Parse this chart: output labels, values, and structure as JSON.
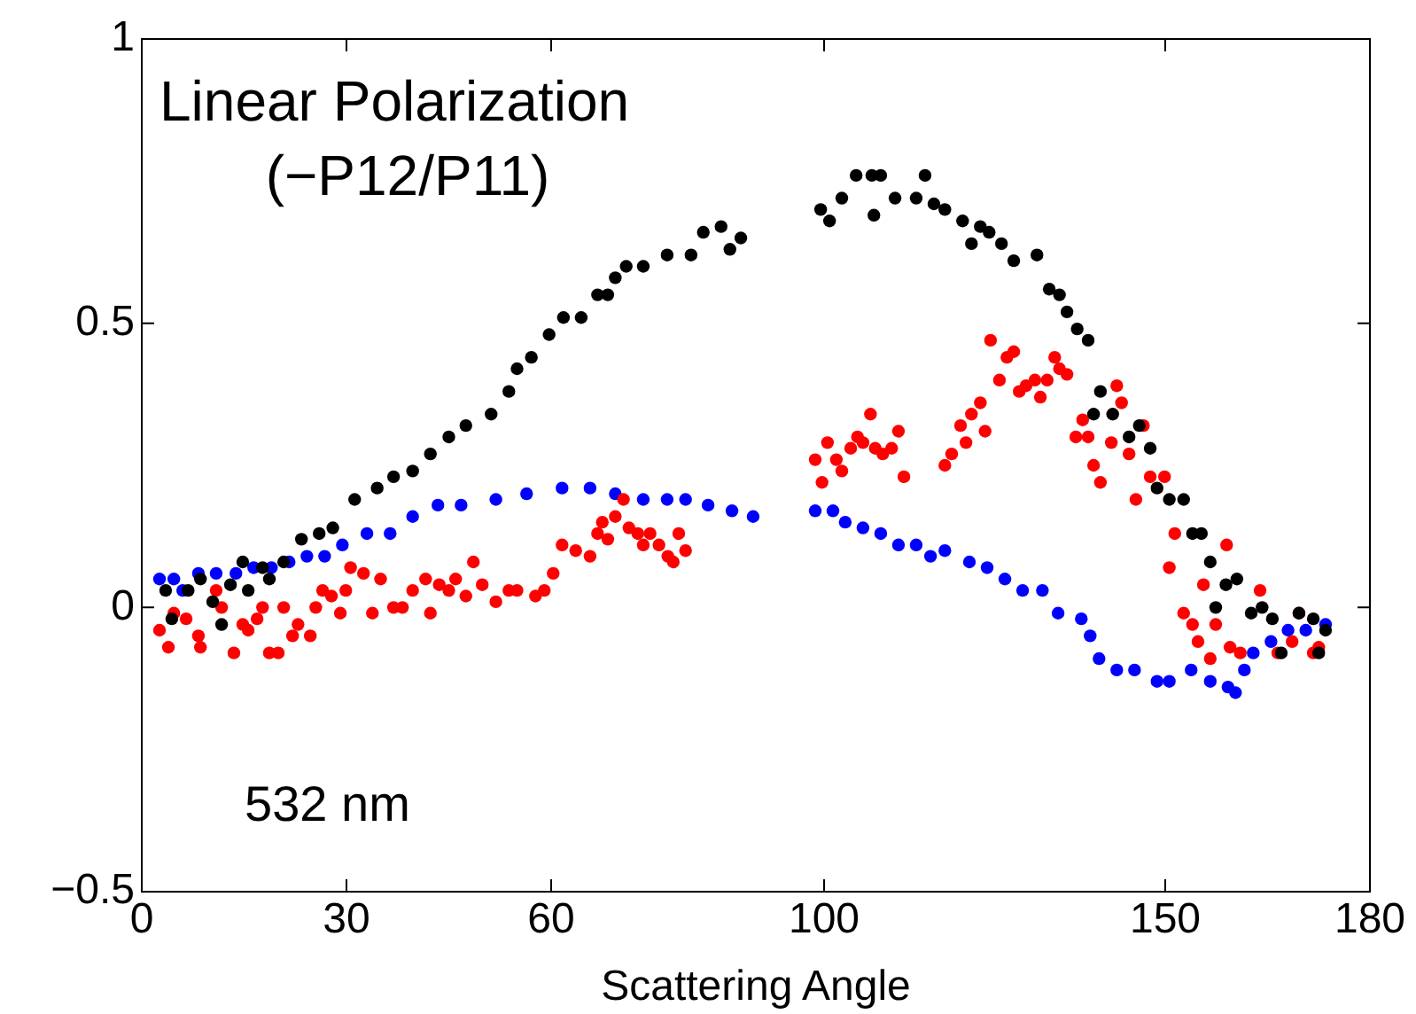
{
  "chart_data": {
    "type": "scatter",
    "title": "Linear Polarization",
    "subtitle": "(−P12/P11)",
    "xlabel": "Scattering Angle",
    "annotations": [
      "532 nm"
    ],
    "xlim": [
      0,
      180
    ],
    "xticks": [
      0,
      30,
      60,
      100,
      150,
      180
    ],
    "ylim": [
      -0.5,
      1
    ],
    "yticks": [
      {
        "value": -0.5,
        "label": "−0.5"
      },
      0,
      0.5,
      1
    ],
    "grid": false,
    "legend": false,
    "marker": "circle",
    "series": [
      {
        "color": "#000000",
        "x": [
          3.5,
          4.4,
          6.8,
          8.6,
          10.4,
          11.7,
          13,
          14.8,
          15.6,
          17.7,
          18.7,
          20.8,
          23.4,
          26,
          28,
          31.2,
          34.5,
          36.9,
          39.7,
          42.3,
          45,
          47.5,
          51.2,
          53.8,
          55,
          57.1,
          59.7,
          61.8,
          64.4,
          66.8,
          68.3,
          69.4,
          71,
          73.5,
          77,
          80.5,
          82.3,
          84.9,
          86.2,
          87.8,
          99.5,
          100.8,
          102.6,
          104.7,
          107,
          107.3,
          108.3,
          110.4,
          113.5,
          114.8,
          116.1,
          117.7,
          120.3,
          121.6,
          122.9,
          124.2,
          126,
          127.8,
          131.2,
          133,
          134.5,
          135.6,
          137.1,
          138.7,
          139.5,
          140.5,
          142.3,
          144.7,
          146.2,
          147.8,
          148.8,
          150.6,
          152.7,
          154,
          155.3,
          156.6,
          157.4,
          158.9,
          160.5,
          162.6,
          164.2,
          165.7,
          167,
          169.6,
          171.7,
          172.5,
          173.5
        ],
        "values": [
          0.03,
          -0.02,
          0.03,
          0.05,
          0.01,
          -0.03,
          0.04,
          0.08,
          0.03,
          0.07,
          0.05,
          0.08,
          0.12,
          0.13,
          0.14,
          0.19,
          0.21,
          0.23,
          0.24,
          0.27,
          0.3,
          0.32,
          0.34,
          0.38,
          0.42,
          0.44,
          0.48,
          0.51,
          0.51,
          0.55,
          0.55,
          0.58,
          0.6,
          0.6,
          0.62,
          0.62,
          0.66,
          0.67,
          0.63,
          0.65,
          0.7,
          0.68,
          0.72,
          0.76,
          0.76,
          0.69,
          0.76,
          0.72,
          0.72,
          0.76,
          0.71,
          0.7,
          0.68,
          0.64,
          0.67,
          0.66,
          0.64,
          0.61,
          0.62,
          0.56,
          0.55,
          0.52,
          0.49,
          0.47,
          0.34,
          0.38,
          0.34,
          0.3,
          0.32,
          0.28,
          0.21,
          0.19,
          0.19,
          0.13,
          0.13,
          0.08,
          0,
          0.04,
          0.05,
          -0.01,
          0,
          -0.02,
          -0.08,
          -0.01,
          -0.02,
          -0.08,
          -0.04
        ]
      },
      {
        "color": "#ff0000",
        "x": [
          2.6,
          3.9,
          4.7,
          6.5,
          8.3,
          8.6,
          10.9,
          11.7,
          13.5,
          14.8,
          15.6,
          16.9,
          17.7,
          18.7,
          20,
          20.8,
          22.1,
          22.9,
          24.7,
          25.5,
          26.5,
          27.8,
          29.1,
          29.9,
          30.6,
          32.5,
          33.8,
          35,
          36.9,
          38.2,
          39.7,
          41.6,
          42.3,
          43.6,
          45,
          46,
          47.5,
          48.6,
          49.9,
          51.9,
          53.8,
          55,
          57.7,
          59,
          60.3,
          61.6,
          63.6,
          65.7,
          66.8,
          67.5,
          68.3,
          69.4,
          70.6,
          71.4,
          72.7,
          73.5,
          74.5,
          75.8,
          77.1,
          77.9,
          78.7,
          79.7,
          98.7,
          99.7,
          100.5,
          101.8,
          102.6,
          103.9,
          104.9,
          105.7,
          106.8,
          107.5,
          108.6,
          109.9,
          110.9,
          111.7,
          117.7,
          118.7,
          120,
          120.8,
          121.6,
          122.9,
          123.6,
          124.4,
          125.7,
          126.8,
          127.8,
          128.6,
          129.6,
          130.9,
          131.7,
          132.7,
          133.8,
          134.5,
          135.6,
          136.9,
          137.9,
          138.7,
          139.5,
          140.5,
          142.1,
          142.9,
          143.6,
          144.7,
          145.7,
          146.8,
          147.8,
          149.9,
          150.6,
          151.4,
          152.7,
          154,
          154.8,
          155.6,
          156.6,
          157.4,
          159,
          159.5,
          161,
          163.9,
          166.5,
          168.6,
          169.6,
          171.7,
          172.5
        ],
        "values": [
          -0.04,
          -0.07,
          -0.01,
          -0.02,
          -0.05,
          -0.07,
          0.03,
          0,
          -0.08,
          -0.03,
          -0.04,
          -0.02,
          0,
          -0.08,
          -0.08,
          0,
          -0.05,
          -0.03,
          -0.05,
          0,
          0.03,
          0.02,
          -0.01,
          0.03,
          0.07,
          0.06,
          -0.01,
          0.05,
          0,
          0,
          0.03,
          0.05,
          -0.01,
          0.04,
          0.03,
          0.05,
          0.02,
          0.08,
          0.04,
          0.01,
          0.03,
          0.03,
          0.02,
          0.03,
          0.06,
          0.11,
          0.1,
          0.09,
          0.13,
          0.15,
          0.12,
          0.16,
          0.19,
          0.14,
          0.13,
          0.11,
          0.13,
          0.11,
          0.09,
          0.08,
          0.13,
          0.1,
          0.26,
          0.22,
          0.29,
          0.26,
          0.24,
          0.28,
          0.3,
          0.29,
          0.34,
          0.28,
          0.27,
          0.28,
          0.31,
          0.23,
          0.25,
          0.27,
          0.32,
          0.29,
          0.34,
          0.36,
          0.31,
          0.47,
          0.4,
          0.44,
          0.45,
          0.38,
          0.39,
          0.4,
          0.37,
          0.4,
          0.44,
          0.42,
          0.41,
          0.3,
          0.33,
          0.3,
          0.25,
          0.22,
          0.29,
          0.39,
          0.36,
          0.27,
          0.19,
          0.32,
          0.23,
          0.23,
          0.07,
          0.13,
          -0.01,
          -0.03,
          -0.06,
          0.04,
          -0.09,
          -0.03,
          0.11,
          -0.07,
          -0.08,
          0.03,
          -0.08,
          -0.06,
          -0.01,
          -0.08,
          -0.07
        ]
      },
      {
        "color": "#0000ff",
        "x": [
          2.6,
          4.7,
          6,
          8.3,
          10.9,
          13.8,
          16.4,
          19,
          21.6,
          24.2,
          26.8,
          29.4,
          33,
          36.4,
          39.7,
          43.4,
          46.8,
          51.9,
          56.4,
          61.6,
          65.7,
          69.4,
          73.5,
          77,
          79.7,
          83,
          86.5,
          89.6,
          98.7,
          101.3,
          103.1,
          105.7,
          108.3,
          110.9,
          113.5,
          115.6,
          117.7,
          121.3,
          123.9,
          126.5,
          129.1,
          132,
          134.3,
          137.7,
          139,
          140.3,
          142.9,
          145.5,
          148.8,
          150.6,
          153.8,
          156.6,
          159.2,
          160.3,
          161.6,
          162.9,
          165.5,
          168,
          170.6,
          173.5
        ],
        "values": [
          0.05,
          0.05,
          0.03,
          0.06,
          0.06,
          0.06,
          0.07,
          0.07,
          0.08,
          0.09,
          0.09,
          0.11,
          0.13,
          0.13,
          0.16,
          0.18,
          0.18,
          0.19,
          0.2,
          0.21,
          0.21,
          0.2,
          0.19,
          0.19,
          0.19,
          0.18,
          0.17,
          0.16,
          0.17,
          0.17,
          0.15,
          0.14,
          0.13,
          0.11,
          0.11,
          0.09,
          0.1,
          0.08,
          0.07,
          0.05,
          0.03,
          0.03,
          -0.01,
          -0.02,
          -0.05,
          -0.09,
          -0.11,
          -0.11,
          -0.13,
          -0.13,
          -0.11,
          -0.13,
          -0.14,
          -0.15,
          -0.11,
          -0.08,
          -0.06,
          -0.04,
          -0.04,
          -0.03
        ]
      }
    ]
  }
}
